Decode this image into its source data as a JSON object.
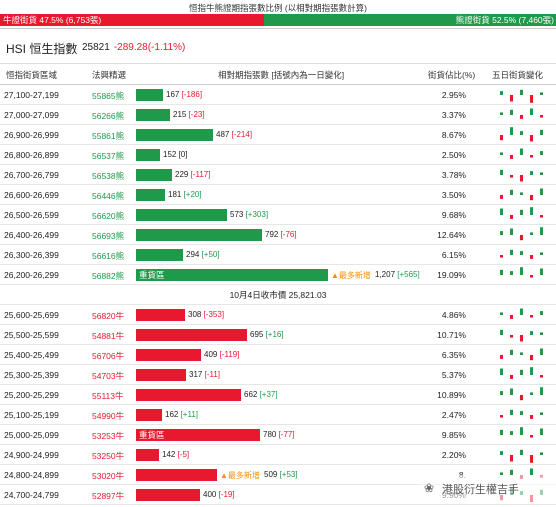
{
  "header": {
    "caption": "恒指牛熊證期指張數比例 (以相對期指張數計算)",
    "bull_label": "牛證街貨 47.5% (6,753張)",
    "bear_label": "熊證街貨 52.5% (7,460張)",
    "bull_fraction": 0.475
  },
  "title": {
    "index_name": "HSI 恒生指數",
    "value": "25821",
    "change": "-289.28(-1.11%)"
  },
  "columns": {
    "range": "恒指街貨區域",
    "code": "法興精選",
    "contracts": "相對期指張數 [括號內為一日變化]",
    "ratio": "街貨佔比(%)",
    "five_day": "五日街貨變化"
  },
  "midline": "10月4日收市價 25,821.03",
  "new_label": "▲最多新增",
  "heavy_label": "重貨區",
  "colors": {
    "bull": "#e8192e",
    "bear": "#1f9a4a",
    "new": "#ff8a00"
  },
  "bear_rows": [
    {
      "range": "27,100-27,199",
      "code": "55865熊",
      "contracts": "167",
      "change": "[-186]",
      "ratio": "2.95%",
      "value": 167
    },
    {
      "range": "27,000-27,099",
      "code": "56266熊",
      "contracts": "215",
      "change": "[-23]",
      "ratio": "3.37%",
      "value": 215
    },
    {
      "range": "26,900-26,999",
      "code": "55861熊",
      "contracts": "487",
      "change": "[-214]",
      "ratio": "8.67%",
      "value": 487
    },
    {
      "range": "26,800-26,899",
      "code": "56537熊",
      "contracts": "152",
      "change": "[0]",
      "ratio": "2.50%",
      "value": 152
    },
    {
      "range": "26,700-26,799",
      "code": "56538熊",
      "contracts": "229",
      "change": "[-117]",
      "ratio": "3.78%",
      "value": 229
    },
    {
      "range": "26,600-26,699",
      "code": "56446熊",
      "contracts": "181",
      "change": "[+20]",
      "ratio": "3.50%",
      "value": 181
    },
    {
      "range": "26,500-26,599",
      "code": "56620熊",
      "contracts": "573",
      "change": "[+303]",
      "ratio": "9.68%",
      "value": 573
    },
    {
      "range": "26,400-26,499",
      "code": "56693熊",
      "contracts": "792",
      "change": "[-76]",
      "ratio": "12.64%",
      "value": 792
    },
    {
      "range": "26,300-26,399",
      "code": "56616熊",
      "contracts": "294",
      "change": "[+50]",
      "ratio": "6.15%",
      "value": 294
    },
    {
      "range": "26,200-26,299",
      "code": "56882熊",
      "contracts": "1,207",
      "change": "[+565]",
      "ratio": "19.09%",
      "value": 1207,
      "heavy": true,
      "most_new": true
    }
  ],
  "bull_rows": [
    {
      "range": "25,600-25,699",
      "code": "56820牛",
      "contracts": "308",
      "change": "[-353]",
      "ratio": "4.86%",
      "value": 308
    },
    {
      "range": "25,500-25,599",
      "code": "54881牛",
      "contracts": "695",
      "change": "[+16]",
      "ratio": "10.71%",
      "value": 695
    },
    {
      "range": "25,400-25,499",
      "code": "56706牛",
      "contracts": "409",
      "change": "[-119]",
      "ratio": "6.35%",
      "value": 409
    },
    {
      "range": "25,300-25,399",
      "code": "54703牛",
      "contracts": "317",
      "change": "[-11]",
      "ratio": "5.37%",
      "value": 317
    },
    {
      "range": "25,200-25,299",
      "code": "55113牛",
      "contracts": "662",
      "change": "[+37]",
      "ratio": "10.89%",
      "value": 662
    },
    {
      "range": "25,100-25,199",
      "code": "54990牛",
      "contracts": "162",
      "change": "[+11]",
      "ratio": "2.47%",
      "value": 162
    },
    {
      "range": "25,000-25,099",
      "code": "53253牛",
      "contracts": "780",
      "change": "[-77]",
      "ratio": "9.85%",
      "value": 780,
      "heavy": true
    },
    {
      "range": "24,900-24,999",
      "code": "53250牛",
      "contracts": "142",
      "change": "[-5]",
      "ratio": "2.20%",
      "value": 142
    },
    {
      "range": "24,800-24,899",
      "code": "53020牛",
      "contracts": "509",
      "change": "[+53]",
      "ratio": "8.",
      "value": 509,
      "most_new": true
    },
    {
      "range": "24,700-24,799",
      "code": "52897牛",
      "contracts": "400",
      "change": "[-19]",
      "ratio": "9.90%",
      "value": 400
    }
  ],
  "watermark": "港股衍生權吉手"
}
